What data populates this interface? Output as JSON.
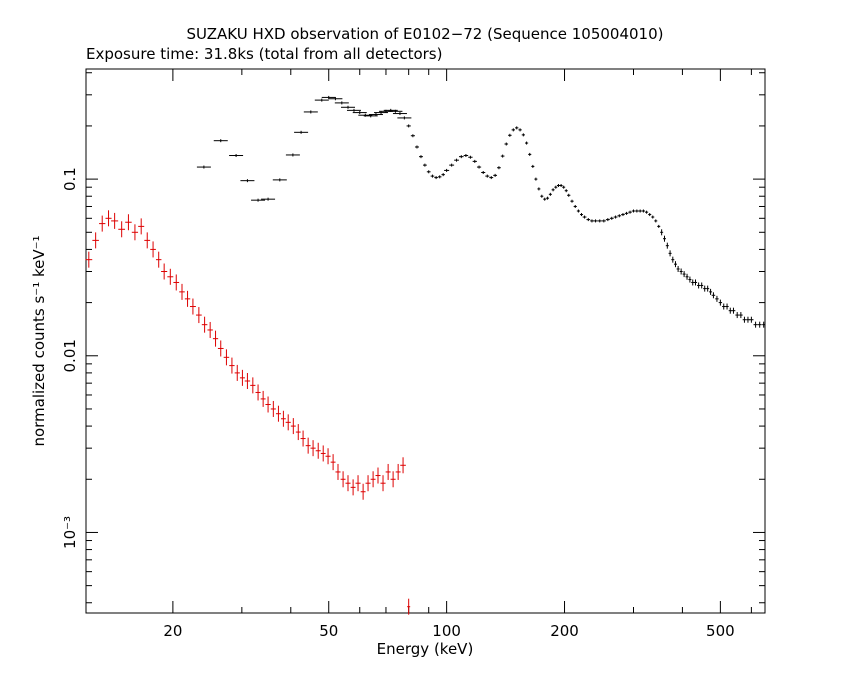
{
  "chart_data": {
    "type": "scatter",
    "title": "SUZAKU HXD observation of E0102−72 (Sequence 105004010)",
    "subtitle": "Exposure time: 31.8ks (total from all detectors)",
    "xlabel": "Energy (keV)",
    "ylabel": "normalized counts s⁻¹ keV⁻¹",
    "xscale": "log",
    "yscale": "log",
    "xlim": [
      12,
      650
    ],
    "ylim": [
      0.00035,
      0.42
    ],
    "x_ticks": [
      {
        "value": 20,
        "label": "20"
      },
      {
        "value": 50,
        "label": "50"
      },
      {
        "value": 100,
        "label": "100"
      },
      {
        "value": 200,
        "label": "200"
      },
      {
        "value": 500,
        "label": "500"
      }
    ],
    "y_ticks": [
      {
        "value": 0.1,
        "label": "0.1"
      },
      {
        "value": 0.01,
        "label": "0.01"
      },
      {
        "value": 0.001,
        "label": "10⁻³"
      }
    ],
    "grid": false,
    "legend": "none",
    "series": [
      {
        "color": "#000000",
        "points": [
          [
            24,
            0.117
          ],
          [
            26.5,
            0.165
          ],
          [
            29,
            0.136
          ],
          [
            31,
            0.098
          ],
          [
            33,
            0.076
          ],
          [
            35,
            0.077
          ],
          [
            37.5,
            0.099
          ],
          [
            40.5,
            0.137
          ],
          [
            42.5,
            0.184
          ],
          [
            45,
            0.24
          ],
          [
            48,
            0.28
          ],
          [
            50,
            0.29
          ],
          [
            52,
            0.285
          ],
          [
            54,
            0.27
          ],
          [
            56,
            0.255
          ],
          [
            58,
            0.245
          ],
          [
            60,
            0.238
          ],
          [
            62,
            0.23
          ],
          [
            64,
            0.228
          ],
          [
            66,
            0.232
          ],
          [
            68,
            0.238
          ],
          [
            70,
            0.242
          ],
          [
            72,
            0.245
          ],
          [
            74,
            0.242
          ],
          [
            76,
            0.235
          ],
          [
            78,
            0.222
          ],
          [
            80,
            0.2
          ],
          [
            82,
            0.176
          ],
          [
            84,
            0.152
          ],
          [
            86,
            0.134
          ],
          [
            88,
            0.12
          ],
          [
            90,
            0.11
          ],
          [
            92,
            0.104
          ],
          [
            94,
            0.102
          ],
          [
            96,
            0.103
          ],
          [
            98,
            0.106
          ],
          [
            100,
            0.112
          ],
          [
            103,
            0.12
          ],
          [
            106,
            0.128
          ],
          [
            109,
            0.134
          ],
          [
            112,
            0.136
          ],
          [
            115,
            0.133
          ],
          [
            118,
            0.126
          ],
          [
            121,
            0.117
          ],
          [
            124,
            0.109
          ],
          [
            127,
            0.104
          ],
          [
            130,
            0.102
          ],
          [
            133,
            0.105
          ],
          [
            136,
            0.116
          ],
          [
            139,
            0.135
          ],
          [
            142,
            0.158
          ],
          [
            145,
            0.177
          ],
          [
            148,
            0.19
          ],
          [
            151,
            0.195
          ],
          [
            154,
            0.19
          ],
          [
            157,
            0.178
          ],
          [
            160,
            0.16
          ],
          [
            163,
            0.138
          ],
          [
            166,
            0.118
          ],
          [
            169,
            0.1
          ],
          [
            172,
            0.088
          ],
          [
            175,
            0.08
          ],
          [
            178,
            0.077
          ],
          [
            181,
            0.078
          ],
          [
            184,
            0.082
          ],
          [
            187,
            0.087
          ],
          [
            190,
            0.09
          ],
          [
            193,
            0.092
          ],
          [
            196,
            0.092
          ],
          [
            199,
            0.09
          ],
          [
            202,
            0.086
          ],
          [
            205,
            0.081
          ],
          [
            209,
            0.075
          ],
          [
            213,
            0.07
          ],
          [
            217,
            0.066
          ],
          [
            221,
            0.063
          ],
          [
            225,
            0.061
          ],
          [
            230,
            0.059
          ],
          [
            235,
            0.058
          ],
          [
            240,
            0.058
          ],
          [
            246,
            0.058
          ],
          [
            252,
            0.058
          ],
          [
            258,
            0.059
          ],
          [
            264,
            0.06
          ],
          [
            270,
            0.061
          ],
          [
            276,
            0.062
          ],
          [
            282,
            0.063
          ],
          [
            288,
            0.064
          ],
          [
            294,
            0.065
          ],
          [
            300,
            0.066
          ],
          [
            306,
            0.066
          ],
          [
            312,
            0.066
          ],
          [
            318,
            0.066
          ],
          [
            324,
            0.065
          ],
          [
            330,
            0.063
          ],
          [
            336,
            0.061
          ],
          [
            342,
            0.058
          ],
          [
            348,
            0.054
          ],
          [
            354,
            0.05
          ],
          [
            360,
            0.046
          ],
          [
            366,
            0.042
          ],
          [
            372,
            0.038
          ],
          [
            378,
            0.035
          ],
          [
            384,
            0.033
          ],
          [
            390,
            0.031
          ],
          [
            397,
            0.03
          ],
          [
            404,
            0.029
          ],
          [
            411,
            0.028
          ],
          [
            418,
            0.027
          ],
          [
            425,
            0.026
          ],
          [
            432,
            0.026
          ],
          [
            440,
            0.025
          ],
          [
            448,
            0.025
          ],
          [
            456,
            0.024
          ],
          [
            464,
            0.024
          ],
          [
            472,
            0.023
          ],
          [
            480,
            0.022
          ],
          [
            490,
            0.021
          ],
          [
            500,
            0.02
          ],
          [
            510,
            0.019
          ],
          [
            520,
            0.019
          ],
          [
            530,
            0.018
          ],
          [
            540,
            0.018
          ],
          [
            552,
            0.017
          ],
          [
            564,
            0.017
          ],
          [
            576,
            0.016
          ],
          [
            588,
            0.016
          ],
          [
            600,
            0.016
          ],
          [
            615,
            0.015
          ],
          [
            630,
            0.015
          ],
          [
            645,
            0.015
          ]
        ]
      },
      {
        "color": "#dd0000",
        "points": [
          [
            12.2,
            0.035
          ],
          [
            12.7,
            0.045
          ],
          [
            13.2,
            0.056
          ],
          [
            13.7,
            0.06
          ],
          [
            14.2,
            0.058
          ],
          [
            14.8,
            0.052
          ],
          [
            15.4,
            0.057
          ],
          [
            16.0,
            0.05
          ],
          [
            16.6,
            0.054
          ],
          [
            17.2,
            0.045
          ],
          [
            17.8,
            0.04
          ],
          [
            18.4,
            0.035
          ],
          [
            19.0,
            0.03
          ],
          [
            19.7,
            0.028
          ],
          [
            20.4,
            0.026
          ],
          [
            21.1,
            0.023
          ],
          [
            21.8,
            0.021
          ],
          [
            22.5,
            0.019
          ],
          [
            23.3,
            0.017
          ],
          [
            24.1,
            0.015
          ],
          [
            24.9,
            0.014
          ],
          [
            25.7,
            0.0125
          ],
          [
            26.5,
            0.011
          ],
          [
            27.4,
            0.0098
          ],
          [
            28.3,
            0.0088
          ],
          [
            29.2,
            0.008
          ],
          [
            30.1,
            0.0075
          ],
          [
            31.0,
            0.0072
          ],
          [
            32.0,
            0.0068
          ],
          [
            33.0,
            0.0062
          ],
          [
            34.0,
            0.0057
          ],
          [
            35.0,
            0.0053
          ],
          [
            36.1,
            0.005
          ],
          [
            37.2,
            0.0047
          ],
          [
            38.3,
            0.0044
          ],
          [
            39.4,
            0.0042
          ],
          [
            40.6,
            0.004
          ],
          [
            41.8,
            0.0037
          ],
          [
            43.0,
            0.0034
          ],
          [
            44.3,
            0.0031
          ],
          [
            45.6,
            0.003
          ],
          [
            47.0,
            0.0029
          ],
          [
            48.4,
            0.0028
          ],
          [
            49.8,
            0.0027
          ],
          [
            51.3,
            0.0025
          ],
          [
            52.8,
            0.0022
          ],
          [
            54.4,
            0.002
          ],
          [
            56.0,
            0.0019
          ],
          [
            57.7,
            0.0018
          ],
          [
            59.4,
            0.0019
          ],
          [
            61.2,
            0.0017
          ],
          [
            63.0,
            0.0019
          ],
          [
            64.9,
            0.002
          ],
          [
            66.8,
            0.0021
          ],
          [
            68.8,
            0.0019
          ],
          [
            70.9,
            0.0022
          ],
          [
            73.0,
            0.002
          ],
          [
            75.2,
            0.0022
          ],
          [
            77.4,
            0.0024
          ],
          [
            80.0,
            0.00038
          ]
        ]
      }
    ]
  }
}
